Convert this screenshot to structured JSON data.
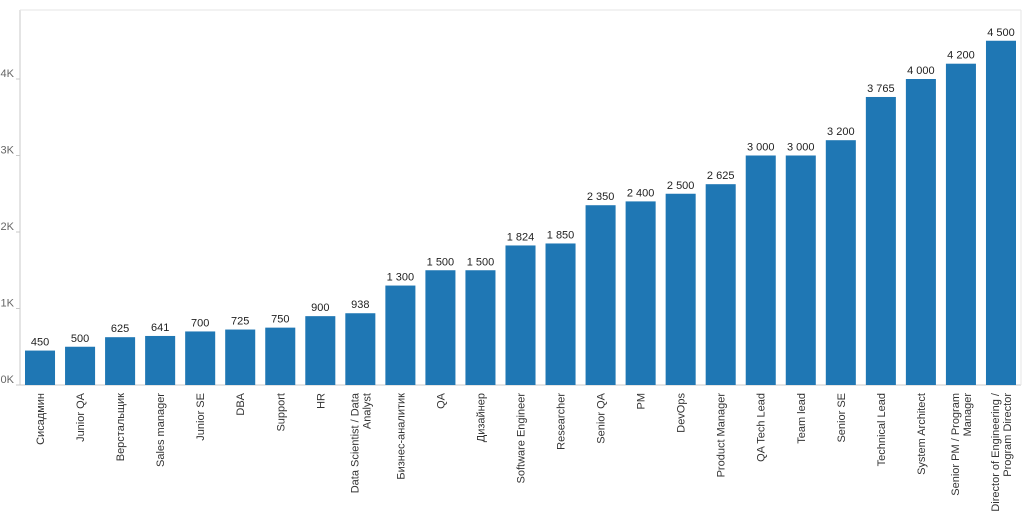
{
  "chart_data": {
    "type": "bar",
    "title": "",
    "xlabel": "",
    "ylabel": "",
    "ylim": [
      0,
      4700
    ],
    "yticks": [
      0,
      1000,
      2000,
      3000,
      4000
    ],
    "ytick_labels": [
      "0K",
      "1K",
      "2K",
      "3K",
      "4K"
    ],
    "grid": false,
    "bar_color": "#1f77b4",
    "categories": [
      [
        "Сисадмин"
      ],
      [
        "Junior QA"
      ],
      [
        "Верстальщик"
      ],
      [
        "Sales manager"
      ],
      [
        "Junior SE"
      ],
      [
        "DBA"
      ],
      [
        "Support"
      ],
      [
        "HR"
      ],
      [
        "Data  Scientist / Data",
        "Analyst"
      ],
      [
        "Бизнес-аналитик"
      ],
      [
        "QA"
      ],
      [
        "Дизайнер"
      ],
      [
        "Software Engineer"
      ],
      [
        "Researcher"
      ],
      [
        "Senior QA"
      ],
      [
        "PM"
      ],
      [
        "DevOps"
      ],
      [
        "Product Manager"
      ],
      [
        "QA Tech Lead"
      ],
      [
        "Team lead"
      ],
      [
        "Senior SE"
      ],
      [
        "Technical Lead"
      ],
      [
        "System Architect"
      ],
      [
        "Senior PM / Program",
        "Manager"
      ],
      [
        "Director of Engineering /",
        "Program Director"
      ]
    ],
    "values": [
      450,
      500,
      625,
      641,
      700,
      725,
      750,
      900,
      938,
      1300,
      1500,
      1500,
      1824,
      1850,
      2350,
      2400,
      2500,
      2625,
      3000,
      3000,
      3200,
      3765,
      4000,
      4200,
      4500
    ],
    "value_labels": [
      "450",
      "500",
      "625",
      "641",
      "700",
      "725",
      "750",
      "900",
      "938",
      "1 300",
      "1 500",
      "1 500",
      "1 824",
      "1 850",
      "2 350",
      "2 400",
      "2 500",
      "2 625",
      "3 000",
      "3 000",
      "3 200",
      "3 765",
      "4 000",
      "4 200",
      "4 500"
    ]
  }
}
